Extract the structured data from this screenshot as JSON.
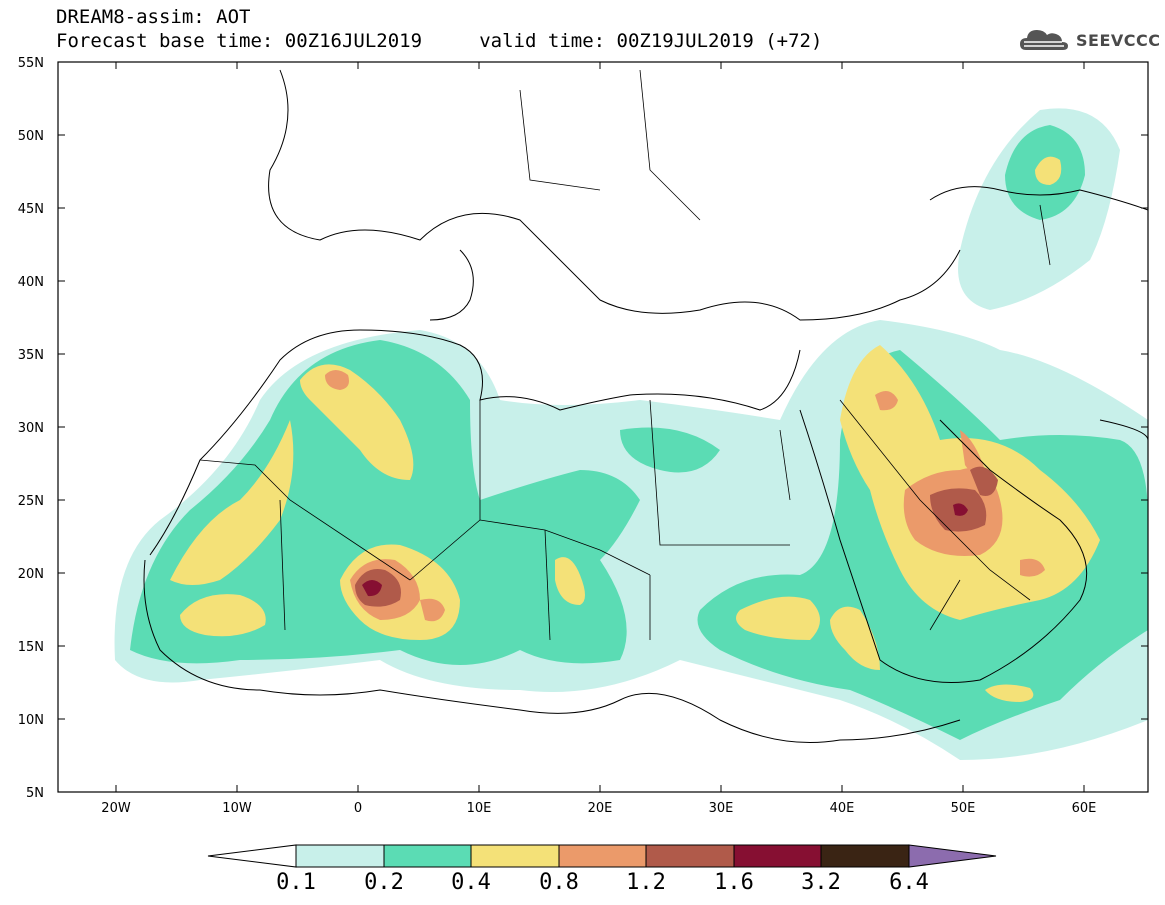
{
  "header": {
    "title_line1": "DREAM8-assim: AOT",
    "title_line2": "Forecast base time: 00Z16JUL2019     valid time: 00Z19JUL2019 (+72)",
    "logo_text": "SEEVCCC"
  },
  "map": {
    "projection": "lat-lon",
    "lon_range": [
      -25,
      65
    ],
    "lat_range": [
      5,
      55
    ],
    "lat_labels": [
      "55N",
      "50N",
      "45N",
      "40N",
      "35N",
      "30N",
      "25N",
      "20N",
      "15N",
      "10N",
      "5N"
    ],
    "lon_labels": [
      "20W",
      "10W",
      "0",
      "10E",
      "20E",
      "30E",
      "40E",
      "50E",
      "60E"
    ],
    "variable": "Aerosol optical thickness (AOT)"
  },
  "legend": {
    "levels": [
      "0.1",
      "0.2",
      "0.4",
      "0.8",
      "1.2",
      "1.6",
      "3.2",
      "6.4"
    ],
    "colors": [
      "#c8f0ea",
      "#5bdcb4",
      "#f4e178",
      "#eb9a6a",
      "#b05a4a",
      "#860f32",
      "#3a2414",
      "#8c6cae"
    ]
  }
}
